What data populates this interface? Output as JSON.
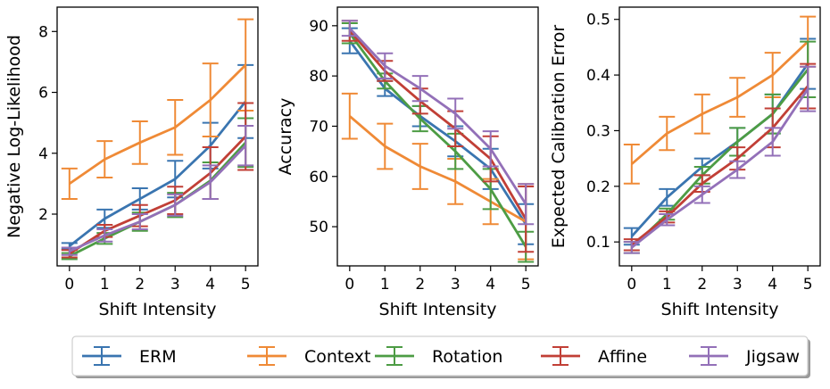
{
  "legend": {
    "placement": "bottom-center",
    "entries": [
      "ERM",
      "Context",
      "Rotation",
      "Affine",
      "Jigsaw"
    ]
  },
  "colors": {
    "ERM": "#3a75b0",
    "Context": "#ef8a36",
    "Rotation": "#4d9c44",
    "Affine": "#c13f36",
    "Jigsaw": "#9370b8"
  },
  "chart_data": [
    {
      "type": "line",
      "xlabel": "Shift Intensity",
      "ylabel": "Negative Log-Likelihood",
      "x": [
        0,
        1,
        2,
        3,
        4,
        5
      ],
      "xlim": [
        -0.35,
        5.35
      ],
      "ylim": [
        0.3,
        8.8
      ],
      "yticks": [
        2,
        4,
        6,
        8
      ],
      "grid": false,
      "series": [
        {
          "name": "ERM",
          "values": [
            0.95,
            1.85,
            2.5,
            3.15,
            4.25,
            5.7
          ],
          "err": [
            0.1,
            0.3,
            0.35,
            0.6,
            0.75,
            1.2
          ]
        },
        {
          "name": "Context",
          "values": [
            3.0,
            3.8,
            4.35,
            4.85,
            5.75,
            6.9
          ],
          "err": [
            0.5,
            0.6,
            0.7,
            0.9,
            1.2,
            1.5
          ]
        },
        {
          "name": "Rotation",
          "values": [
            0.62,
            1.2,
            1.75,
            2.3,
            3.1,
            4.35
          ],
          "err": [
            0.1,
            0.18,
            0.3,
            0.4,
            0.6,
            0.8
          ]
        },
        {
          "name": "Affine",
          "values": [
            0.7,
            1.45,
            1.95,
            2.45,
            3.35,
            4.55
          ],
          "err": [
            0.12,
            0.2,
            0.35,
            0.45,
            0.85,
            1.1
          ]
        },
        {
          "name": "Jigsaw",
          "values": [
            0.78,
            1.3,
            1.75,
            2.3,
            3.05,
            4.25
          ],
          "err": [
            0.12,
            0.2,
            0.25,
            0.35,
            0.55,
            0.65
          ]
        }
      ]
    },
    {
      "type": "line",
      "xlabel": "Shift Intensity",
      "ylabel": "Accuracy",
      "x": [
        0,
        1,
        2,
        3,
        4,
        5
      ],
      "xlim": [
        -0.35,
        5.35
      ],
      "ylim": [
        42.2,
        93.7
      ],
      "yticks": [
        50,
        60,
        70,
        80,
        90
      ],
      "grid": false,
      "series": [
        {
          "name": "ERM",
          "values": [
            87,
            77.5,
            72,
            67,
            61.5,
            50.5
          ],
          "err": [
            2.5,
            1.5,
            2,
            3,
            4,
            4
          ]
        },
        {
          "name": "Context",
          "values": [
            72,
            66,
            62,
            59,
            55,
            51
          ],
          "err": [
            4.5,
            4.5,
            4.5,
            4.5,
            4.5,
            7.5
          ]
        },
        {
          "name": "Rotation",
          "values": [
            88.5,
            79,
            71.5,
            65,
            57.5,
            46
          ],
          "err": [
            2,
            1.5,
            2.5,
            3.5,
            4,
            3
          ]
        },
        {
          "name": "Affine",
          "values": [
            89,
            81,
            75,
            69.5,
            63.5,
            51.5
          ],
          "err": [
            2,
            2,
            2.5,
            3.5,
            4.5,
            6.5
          ]
        },
        {
          "name": "Jigsaw",
          "values": [
            89.5,
            82,
            77.5,
            72.5,
            65.5,
            54.5
          ],
          "err": [
            1.5,
            2.5,
            2.5,
            3,
            3.5,
            4
          ]
        }
      ]
    },
    {
      "type": "line",
      "xlabel": "Shift Intensity",
      "ylabel": "Expected Calibration Error",
      "x": [
        0,
        1,
        2,
        3,
        4,
        5
      ],
      "xlim": [
        -0.35,
        5.35
      ],
      "ylim": [
        0.057,
        0.522
      ],
      "yticks": [
        0.1,
        0.2,
        0.3,
        0.4,
        0.5
      ],
      "grid": false,
      "series": [
        {
          "name": "ERM",
          "values": [
            0.11,
            0.18,
            0.235,
            0.28,
            0.33,
            0.42
          ],
          "err": [
            0.015,
            0.015,
            0.015,
            0.025,
            0.035,
            0.045
          ]
        },
        {
          "name": "Context",
          "values": [
            0.24,
            0.295,
            0.33,
            0.36,
            0.4,
            0.46
          ],
          "err": [
            0.035,
            0.03,
            0.035,
            0.035,
            0.04,
            0.045
          ]
        },
        {
          "name": "Rotation",
          "values": [
            0.09,
            0.15,
            0.22,
            0.28,
            0.33,
            0.41
          ],
          "err": [
            0.01,
            0.01,
            0.015,
            0.025,
            0.035,
            0.05
          ]
        },
        {
          "name": "Affine",
          "values": [
            0.095,
            0.145,
            0.205,
            0.25,
            0.305,
            0.38
          ],
          "err": [
            0.01,
            0.01,
            0.015,
            0.02,
            0.035,
            0.04
          ]
        },
        {
          "name": "Jigsaw",
          "values": [
            0.09,
            0.14,
            0.185,
            0.23,
            0.28,
            0.375
          ],
          "err": [
            0.01,
            0.01,
            0.015,
            0.015,
            0.025,
            0.04
          ]
        }
      ]
    }
  ]
}
